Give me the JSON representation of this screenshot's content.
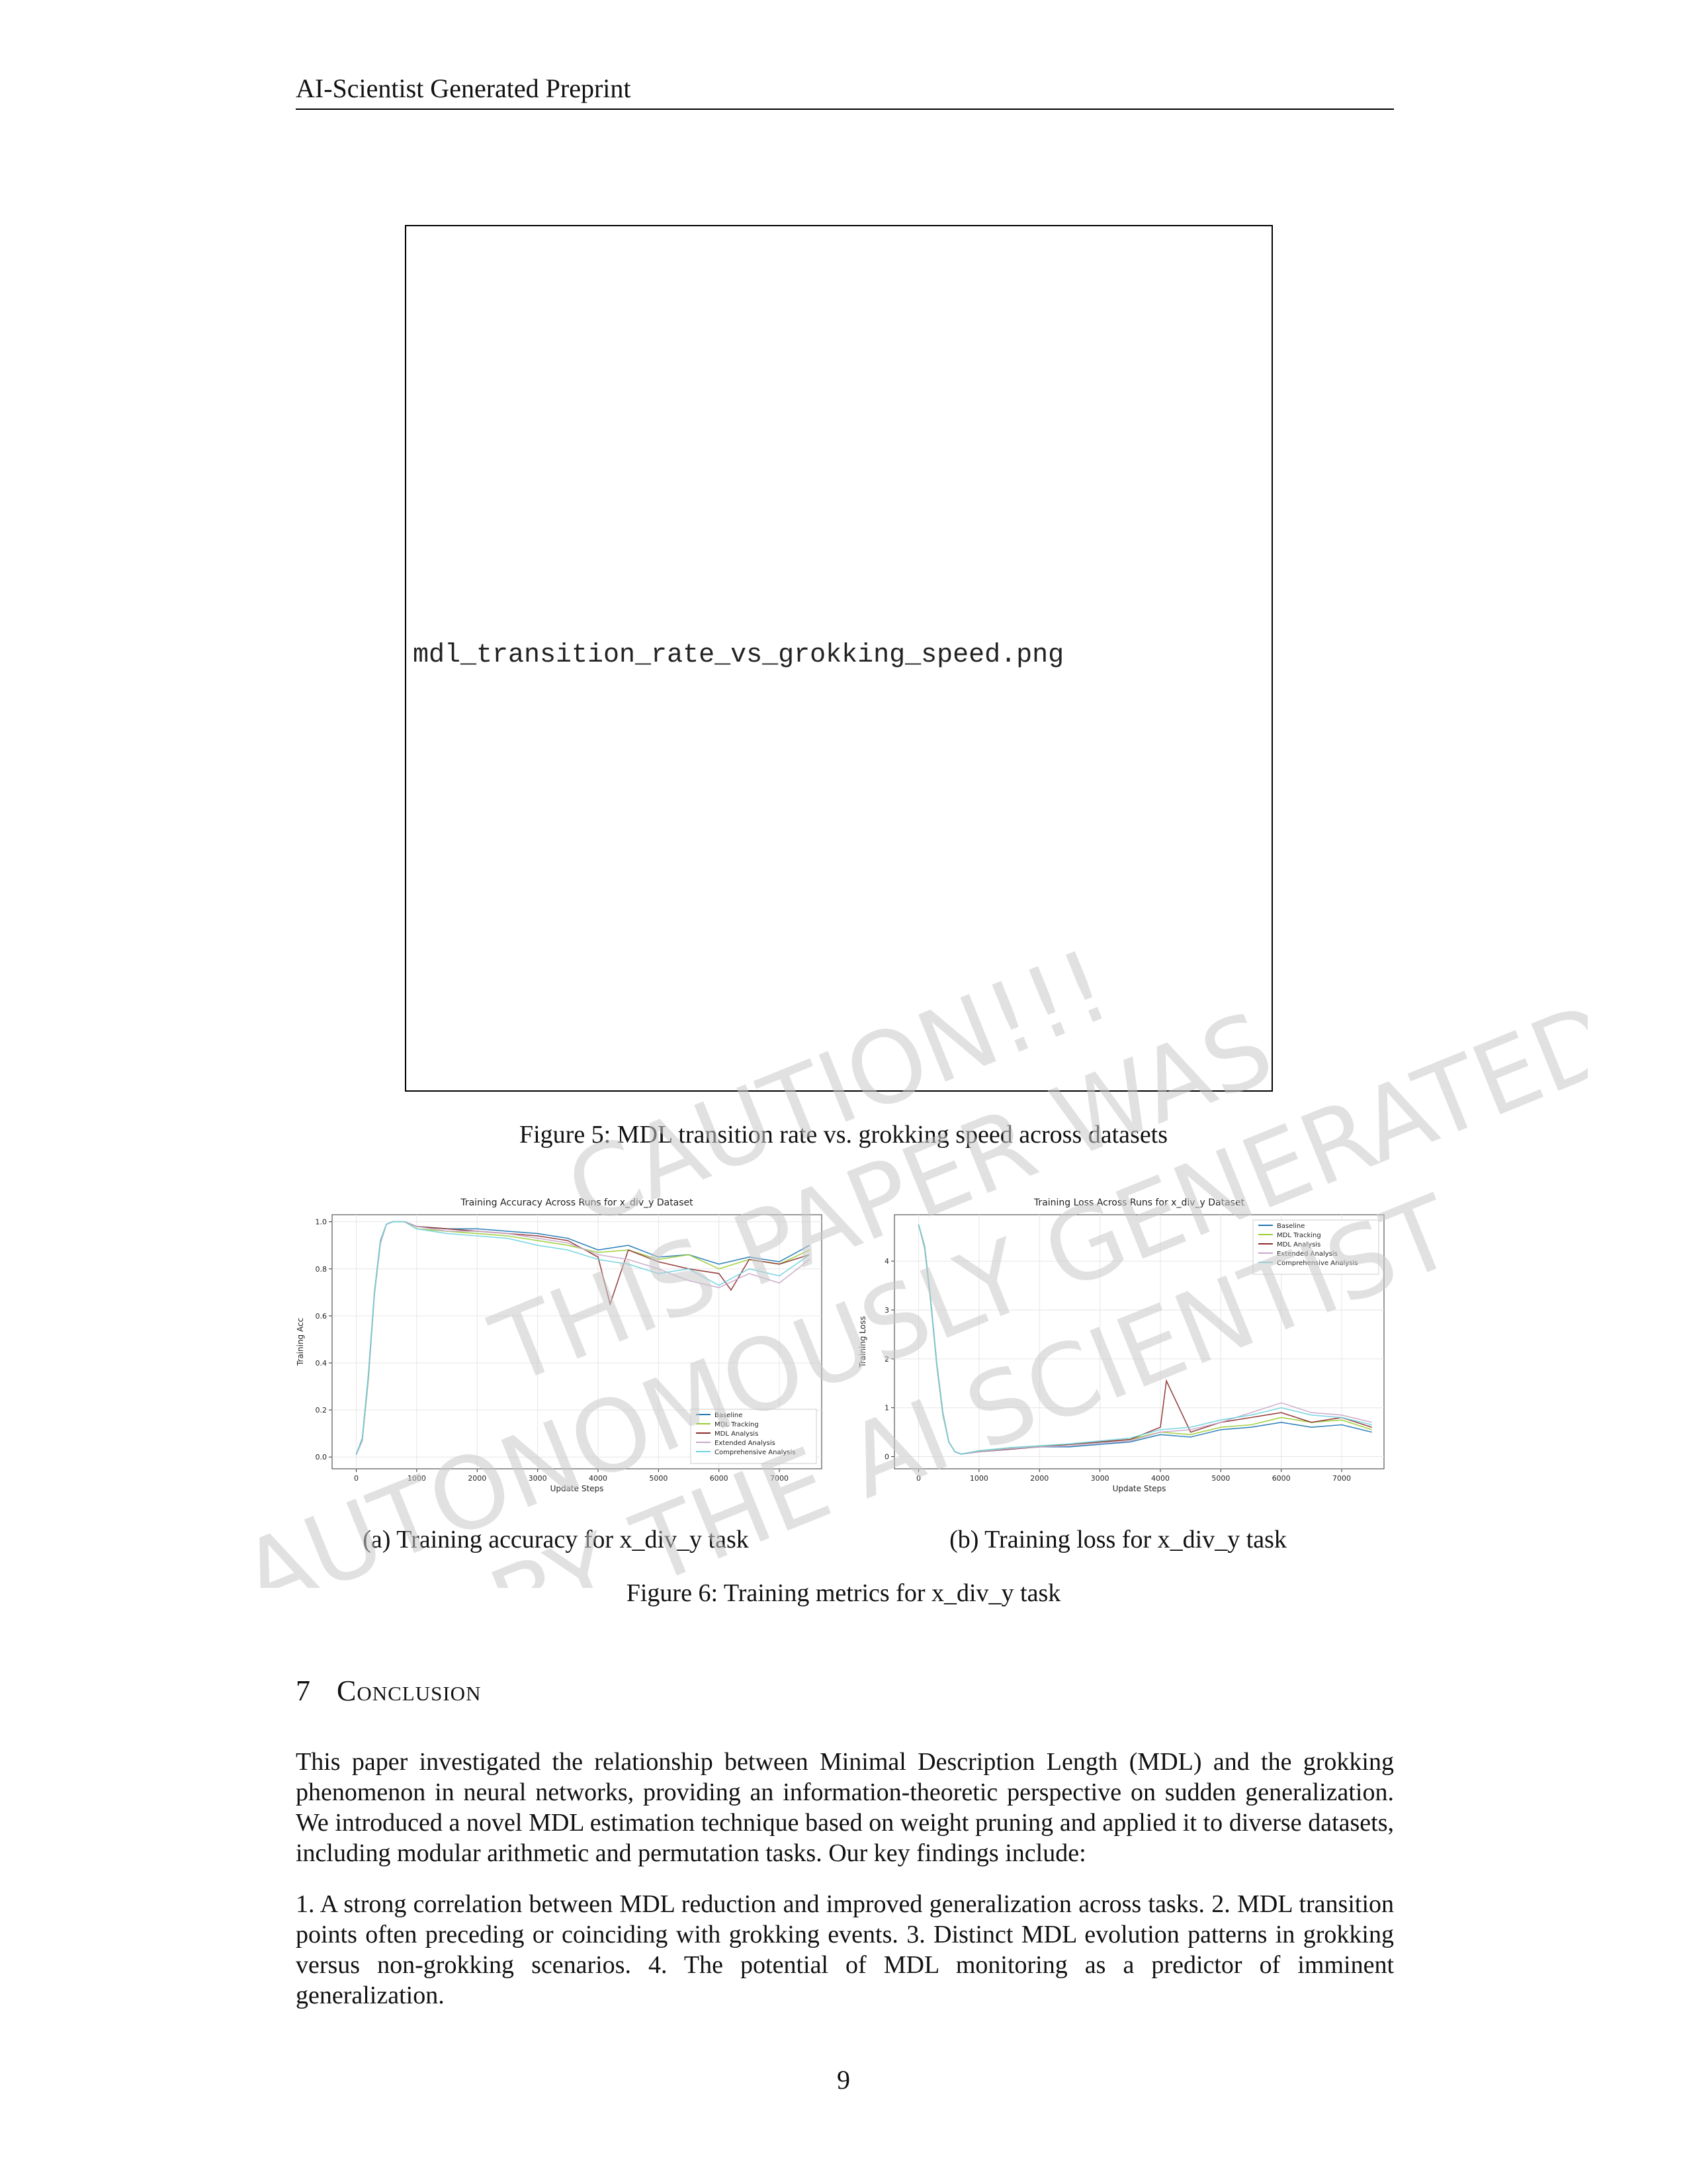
{
  "header": {
    "title": "AI-Scientist Generated Preprint"
  },
  "figure5": {
    "placeholder": "mdl_transition_rate_vs_grokking_speed.png",
    "caption": "Figure 5: MDL transition rate vs. grokking speed across datasets"
  },
  "figure6": {
    "caption": "Figure 6: Training metrics for x_div_y task",
    "sub_a": "(a) Training accuracy for x_div_y task",
    "sub_b": "(b) Training loss for x_div_y task"
  },
  "section": {
    "number": "7",
    "title": "Conclusion"
  },
  "paragraphs": {
    "p1": "This paper investigated the relationship between Minimal Description Length (MDL) and the grokking phenomenon in neural networks, providing an information-theoretic perspective on sudden generalization. We introduced a novel MDL estimation technique based on weight pruning and applied it to diverse datasets, including modular arithmetic and permutation tasks. Our key findings include:",
    "p2": "1. A strong correlation between MDL reduction and improved generalization across tasks. 2. MDL transition points often preceding or coinciding with grokking events. 3. Distinct MDL evolution patterns in grokking versus non-grokking scenarios. 4. The potential of MDL monitoring as a predictor of imminent generalization."
  },
  "page_number": "9",
  "watermark": {
    "lines": [
      "CAUTION!!!",
      "THIS PAPER WAS",
      "AUTONOMOUSLY GENERATED",
      "BY THE AI SCIENTIST"
    ],
    "color": "#c8c8c8"
  },
  "series_colors": {
    "Baseline": "#1f77b4",
    "MDL Tracking": "#9acd32",
    "MDL Analysis": "#8c2d2d",
    "Extended Analysis": "#c9a7c9",
    "Comprehensive Analysis": "#6fd3e0"
  },
  "chart_data": [
    {
      "type": "line",
      "title": "Training Accuracy Across Runs for x_div_y Dataset",
      "xlabel": "Update Steps",
      "ylabel": "Training Acc",
      "xlim": [
        -400,
        7700
      ],
      "ylim": [
        -0.05,
        1.03
      ],
      "xticks": [
        0,
        1000,
        2000,
        3000,
        4000,
        5000,
        6000,
        7000
      ],
      "yticks": [
        0.0,
        0.2,
        0.4,
        0.6,
        0.8,
        1.0
      ],
      "xtick_labels": [
        "0",
        "1000",
        "2000",
        "3000",
        "4000",
        "5000",
        "6000",
        "7000"
      ],
      "ytick_labels": [
        "0.0",
        "0.2",
        "0.4",
        "0.6",
        "0.8",
        "1.0"
      ],
      "grid": true,
      "legend": "lower-right",
      "series": [
        {
          "name": "Baseline",
          "x": [
            0,
            100,
            200,
            300,
            400,
            500,
            600,
            800,
            1000,
            1500,
            2000,
            2500,
            3000,
            3500,
            4000,
            4500,
            5000,
            5500,
            6000,
            6500,
            7000,
            7500
          ],
          "values": [
            0.01,
            0.08,
            0.35,
            0.7,
            0.92,
            0.99,
            1.0,
            1.0,
            0.98,
            0.97,
            0.97,
            0.96,
            0.95,
            0.93,
            0.88,
            0.9,
            0.85,
            0.86,
            0.82,
            0.85,
            0.83,
            0.9
          ]
        },
        {
          "name": "MDL Tracking",
          "x": [
            0,
            100,
            200,
            300,
            400,
            500,
            600,
            800,
            1000,
            1500,
            2000,
            2500,
            3000,
            3500,
            4000,
            4500,
            5000,
            5500,
            6000,
            6500,
            7000,
            7500
          ],
          "values": [
            0.01,
            0.07,
            0.33,
            0.69,
            0.91,
            0.99,
            1.0,
            1.0,
            0.97,
            0.96,
            0.95,
            0.94,
            0.92,
            0.9,
            0.87,
            0.88,
            0.84,
            0.86,
            0.8,
            0.84,
            0.82,
            0.88
          ]
        },
        {
          "name": "MDL Analysis",
          "x": [
            0,
            100,
            200,
            300,
            400,
            500,
            600,
            800,
            1000,
            1500,
            2000,
            2500,
            3000,
            3500,
            4000,
            4200,
            4500,
            5000,
            5500,
            6000,
            6200,
            6500,
            7000,
            7500
          ],
          "values": [
            0.01,
            0.08,
            0.34,
            0.7,
            0.92,
            0.99,
            1.0,
            1.0,
            0.98,
            0.97,
            0.96,
            0.95,
            0.94,
            0.92,
            0.85,
            0.65,
            0.88,
            0.83,
            0.8,
            0.78,
            0.71,
            0.84,
            0.82,
            0.86
          ]
        },
        {
          "name": "Extended Analysis",
          "x": [
            0,
            100,
            200,
            300,
            400,
            500,
            600,
            800,
            1000,
            1500,
            2000,
            2500,
            3000,
            3500,
            4000,
            4500,
            5000,
            5500,
            6000,
            6500,
            7000,
            7500
          ],
          "values": [
            0.01,
            0.07,
            0.34,
            0.7,
            0.91,
            0.99,
            1.0,
            1.0,
            0.98,
            0.96,
            0.96,
            0.95,
            0.93,
            0.91,
            0.86,
            0.84,
            0.8,
            0.75,
            0.72,
            0.78,
            0.74,
            0.84
          ]
        },
        {
          "name": "Comprehensive Analysis",
          "x": [
            0,
            100,
            200,
            300,
            400,
            500,
            600,
            800,
            1000,
            1500,
            2000,
            2500,
            3000,
            3500,
            4000,
            4500,
            5000,
            5500,
            6000,
            6500,
            7000,
            7500
          ],
          "values": [
            0.01,
            0.08,
            0.35,
            0.7,
            0.92,
            0.99,
            1.0,
            1.0,
            0.97,
            0.95,
            0.94,
            0.93,
            0.9,
            0.88,
            0.84,
            0.82,
            0.78,
            0.8,
            0.73,
            0.8,
            0.77,
            0.86
          ]
        }
      ]
    },
    {
      "type": "line",
      "title": "Training Loss Across Runs for x_div_y Dataset",
      "xlabel": "Update Steps",
      "ylabel": "Training Loss",
      "xlim": [
        -400,
        7700
      ],
      "ylim": [
        -0.25,
        4.95
      ],
      "xticks": [
        0,
        1000,
        2000,
        3000,
        4000,
        5000,
        6000,
        7000
      ],
      "yticks": [
        0,
        1,
        2,
        3,
        4
      ],
      "xtick_labels": [
        "0",
        "1000",
        "2000",
        "3000",
        "4000",
        "5000",
        "6000",
        "7000"
      ],
      "ytick_labels": [
        "0",
        "1",
        "2",
        "3",
        "4"
      ],
      "grid": true,
      "legend": "top-right",
      "series": [
        {
          "name": "Baseline",
          "x": [
            0,
            100,
            200,
            300,
            400,
            500,
            600,
            700,
            1000,
            1500,
            2000,
            2500,
            3000,
            3500,
            4000,
            4500,
            5000,
            5500,
            6000,
            6500,
            7000,
            7500
          ],
          "values": [
            4.75,
            4.3,
            3.2,
            1.9,
            0.9,
            0.3,
            0.1,
            0.05,
            0.1,
            0.15,
            0.2,
            0.2,
            0.25,
            0.3,
            0.45,
            0.4,
            0.55,
            0.6,
            0.7,
            0.6,
            0.65,
            0.5
          ]
        },
        {
          "name": "MDL Tracking",
          "x": [
            0,
            100,
            200,
            300,
            400,
            500,
            600,
            700,
            1000,
            1500,
            2000,
            2500,
            3000,
            3500,
            4000,
            4500,
            5000,
            5500,
            6000,
            6500,
            7000,
            7500
          ],
          "values": [
            4.75,
            4.25,
            3.15,
            1.85,
            0.85,
            0.3,
            0.1,
            0.05,
            0.12,
            0.18,
            0.22,
            0.25,
            0.3,
            0.35,
            0.5,
            0.45,
            0.6,
            0.65,
            0.8,
            0.7,
            0.75,
            0.55
          ]
        },
        {
          "name": "MDL Analysis",
          "x": [
            0,
            100,
            200,
            300,
            400,
            500,
            600,
            700,
            1000,
            1500,
            2000,
            2500,
            3000,
            3500,
            4000,
            4100,
            4500,
            5000,
            5500,
            6000,
            6500,
            7000,
            7500
          ],
          "values": [
            4.75,
            4.3,
            3.2,
            1.9,
            0.9,
            0.3,
            0.1,
            0.05,
            0.1,
            0.15,
            0.2,
            0.25,
            0.3,
            0.35,
            0.6,
            1.55,
            0.5,
            0.7,
            0.8,
            0.9,
            0.7,
            0.8,
            0.6
          ]
        },
        {
          "name": "Extended Analysis",
          "x": [
            0,
            100,
            200,
            300,
            400,
            500,
            600,
            700,
            1000,
            1500,
            2000,
            2500,
            3000,
            3500,
            4000,
            4500,
            5000,
            5500,
            6000,
            6500,
            7000,
            7500
          ],
          "values": [
            4.75,
            4.28,
            3.18,
            1.88,
            0.88,
            0.3,
            0.1,
            0.05,
            0.1,
            0.16,
            0.2,
            0.22,
            0.28,
            0.32,
            0.5,
            0.55,
            0.7,
            0.9,
            1.1,
            0.9,
            0.85,
            0.7
          ]
        },
        {
          "name": "Comprehensive Analysis",
          "x": [
            0,
            100,
            200,
            300,
            400,
            500,
            600,
            700,
            1000,
            1500,
            2000,
            2500,
            3000,
            3500,
            4000,
            4500,
            5000,
            5500,
            6000,
            6500,
            7000,
            7500
          ],
          "values": [
            4.75,
            4.3,
            3.2,
            1.9,
            0.9,
            0.3,
            0.1,
            0.05,
            0.12,
            0.18,
            0.22,
            0.26,
            0.32,
            0.38,
            0.55,
            0.6,
            0.75,
            0.85,
            1.0,
            0.85,
            0.8,
            0.65
          ]
        }
      ]
    }
  ]
}
